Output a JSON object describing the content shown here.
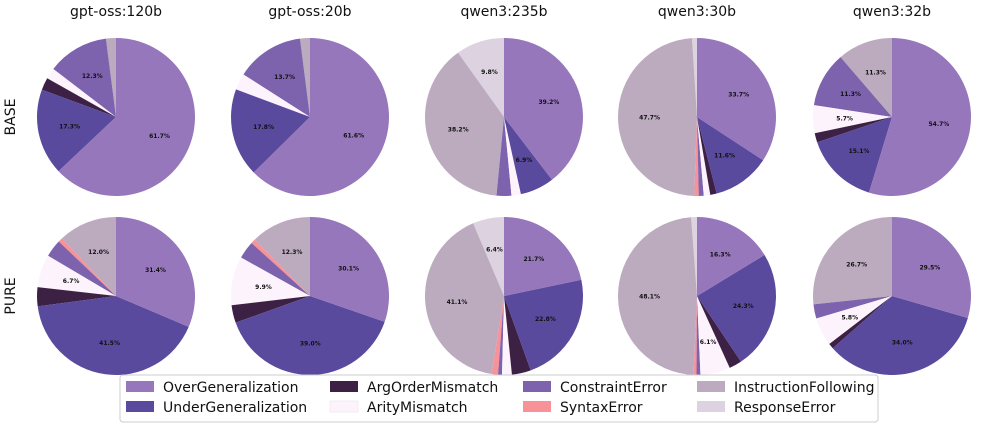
{
  "chart_data": {
    "type": "pie",
    "columns": [
      "gpt-oss:120b",
      "gpt-oss:20b",
      "qwen3:235b",
      "qwen3:30b",
      "qwen3:32b"
    ],
    "rows": [
      "BASE",
      "PURE"
    ],
    "categories": [
      "OverGeneralization",
      "UnderGeneralization",
      "ArgOrderMismatch",
      "ArityMismatch",
      "ConstraintError",
      "SyntaxError",
      "InstructionFollowing",
      "ResponseError"
    ],
    "colors": {
      "OverGeneralization": "#9677bb",
      "UnderGeneralization": "#5a4a9e",
      "ArgOrderMismatch": "#3d2145",
      "ArityMismatch": "#fdf3fd",
      "ConstraintError": "#7d62ad",
      "SyntaxError": "#f79298",
      "InstructionFollowing": "#bcaabf",
      "ResponseError": "#ddd2df"
    },
    "pies": [
      {
        "model": "gpt-oss:120b",
        "row": "BASE",
        "values": {
          "InstructionFollowing": 2.0,
          "ConstraintError": 12.3,
          "ArityMismatch": 2.2,
          "ArgOrderMismatch": 2.5,
          "UnderGeneralization": 17.3,
          "OverGeneralization": 61.7
        },
        "labels": {
          "ConstraintError": "12.3%",
          "UnderGeneralization": "17.3%",
          "OverGeneralization": "61.7%"
        }
      },
      {
        "model": "gpt-oss:20b",
        "row": "BASE",
        "values": {
          "InstructionFollowing": 2.0,
          "ConstraintError": 13.7,
          "ArityMismatch": 3.3,
          "UnderGeneralization": 17.8,
          "OverGeneralization": 61.6
        },
        "labels": {
          "ConstraintError": "13.7%",
          "UnderGeneralization": "17.8%",
          "OverGeneralization": "61.6%"
        }
      },
      {
        "model": "qwen3:235b",
        "row": "BASE",
        "values": {
          "ResponseError": 9.8,
          "InstructionFollowing": 38.2,
          "ConstraintError": 3.0,
          "ArityMismatch": 1.9,
          "UnderGeneralization": 6.9,
          "OverGeneralization": 39.2
        },
        "labels": {
          "ResponseError": "9.8%",
          "InstructionFollowing": "38.2%",
          "UnderGeneralization": "6.9%",
          "OverGeneralization": "39.2%"
        }
      },
      {
        "model": "qwen3:30b",
        "row": "BASE",
        "values": {
          "ResponseError": 1.0,
          "InstructionFollowing": 47.7,
          "SyntaxError": 0.9,
          "ConstraintError": 1.0,
          "ArityMismatch": 1.3,
          "ArgOrderMismatch": 1.3,
          "UnderGeneralization": 11.6,
          "OverGeneralization": 33.7
        },
        "labels": {
          "InstructionFollowing": "47.7%",
          "UnderGeneralization": "11.6%",
          "OverGeneralization": "33.7%"
        }
      },
      {
        "model": "qwen3:32b",
        "row": "BASE",
        "values": {
          "InstructionFollowing": 11.3,
          "ConstraintError": 11.3,
          "ArityMismatch": 5.7,
          "ArgOrderMismatch": 1.9,
          "UnderGeneralization": 15.1,
          "OverGeneralization": 54.7
        },
        "labels": {
          "InstructionFollowing": "11.3%",
          "ConstraintError": "11.3%",
          "ArityMismatch": "5.7%",
          "UnderGeneralization": "15.1%",
          "OverGeneralization": "54.7%"
        }
      },
      {
        "model": "gpt-oss:120b",
        "row": "PURE",
        "values": {
          "InstructionFollowing": 12.0,
          "SyntaxError": 0.9,
          "ConstraintError": 3.6,
          "ArityMismatch": 6.7,
          "ArgOrderMismatch": 3.9,
          "UnderGeneralization": 41.5,
          "OverGeneralization": 31.4
        },
        "labels": {
          "InstructionFollowing": "12.0%",
          "ArityMismatch": "6.7%",
          "UnderGeneralization": "41.5%",
          "OverGeneralization": "31.4%"
        }
      },
      {
        "model": "gpt-oss:20b",
        "row": "PURE",
        "values": {
          "InstructionFollowing": 12.3,
          "SyntaxError": 0.9,
          "ConstraintError": 3.6,
          "ArityMismatch": 9.9,
          "ArgOrderMismatch": 3.6,
          "UnderGeneralization": 39.0,
          "OverGeneralization": 30.1
        },
        "labels": {
          "InstructionFollowing": "12.3%",
          "ArityMismatch": "9.9%",
          "UnderGeneralization": "39.0%",
          "OverGeneralization": "30.1%"
        }
      },
      {
        "model": "qwen3:235b",
        "row": "PURE",
        "values": {
          "ResponseError": 6.4,
          "InstructionFollowing": 41.1,
          "SyntaxError": 1.3,
          "ConstraintError": 0.8,
          "ArityMismatch": 2.0,
          "ArgOrderMismatch": 3.9,
          "UnderGeneralization": 22.8,
          "OverGeneralization": 21.7
        },
        "labels": {
          "ResponseError": "6.4%",
          "InstructionFollowing": "41.1%",
          "UnderGeneralization": "22.8%",
          "OverGeneralization": "21.7%"
        }
      },
      {
        "model": "qwen3:30b",
        "row": "PURE",
        "values": {
          "ResponseError": 1.2,
          "InstructionFollowing": 48.1,
          "SyntaxError": 0.6,
          "ConstraintError": 0.8,
          "ArityMismatch": 6.1,
          "ArgOrderMismatch": 2.6,
          "UnderGeneralization": 24.3,
          "OverGeneralization": 16.3
        },
        "labels": {
          "InstructionFollowing": "48.1%",
          "ArityMismatch": "6.1%",
          "UnderGeneralization": "24.3%",
          "OverGeneralization": "16.3%"
        }
      },
      {
        "model": "qwen3:32b",
        "row": "PURE",
        "values": {
          "InstructionFollowing": 26.7,
          "ConstraintError": 2.9,
          "ArityMismatch": 5.8,
          "ArgOrderMismatch": 1.1,
          "UnderGeneralization": 34.0,
          "OverGeneralization": 29.5
        },
        "labels": {
          "InstructionFollowing": "26.7%",
          "ArityMismatch": "5.8%",
          "UnderGeneralization": "34.0%",
          "OverGeneralization": "29.5%"
        }
      }
    ],
    "legend": {
      "placement": "bottom-center",
      "items": [
        "OverGeneralization",
        "UnderGeneralization",
        "ArgOrderMismatch",
        "ArityMismatch",
        "ConstraintError",
        "SyntaxError",
        "InstructionFollowing",
        "ResponseError"
      ]
    }
  }
}
